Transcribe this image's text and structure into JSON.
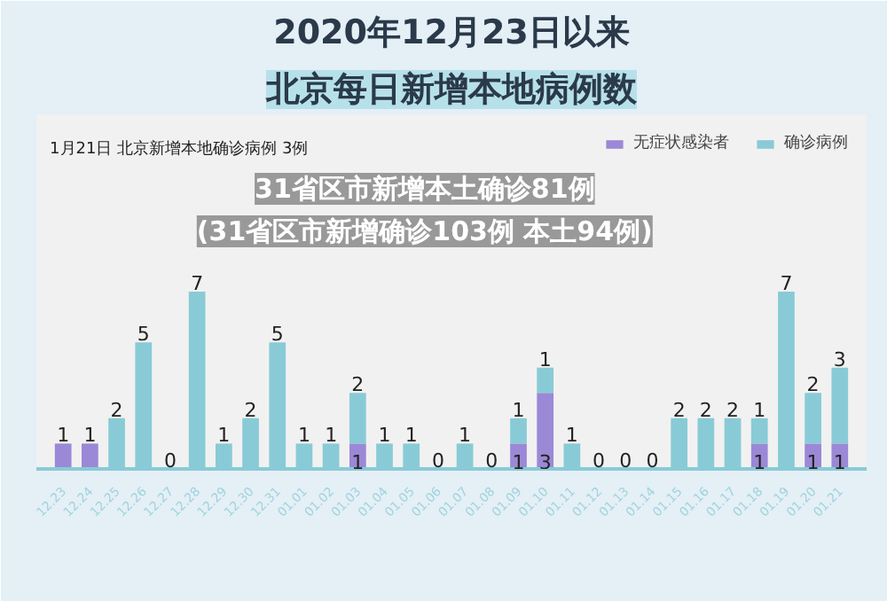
{
  "chart_data": {
    "type": "bar",
    "title": "2020年12月23日以来",
    "subtitle": "北京每日新增本地病例数",
    "annotations": [
      "1月21日 北京新增本地确诊病例 3例",
      "31省区市新增本土确诊81例(31省区市新增确诊103例 本土94例)"
    ],
    "categories": [
      "12.23",
      "12.24",
      "12.25",
      "12.26",
      "12.27",
      "12.28",
      "12.29",
      "12.30",
      "12.31",
      "01.01",
      "01.02",
      "01.03",
      "01.04",
      "01.05",
      "01.06",
      "01.07",
      "01.08",
      "01.09",
      "01.10",
      "01.11",
      "01.12",
      "01.13",
      "01.14",
      "01.15",
      "01.16",
      "01.17",
      "01.18",
      "01.19",
      "01.20",
      "01.21"
    ],
    "stacked": true,
    "legend": "top right",
    "grid": false,
    "series": [
      {
        "name": "无症状感染者",
        "color": "#9b88d6",
        "values": [
          1,
          1,
          0,
          0,
          0,
          0,
          0,
          0,
          0,
          0,
          0,
          1,
          0,
          0,
          0,
          0,
          0,
          1,
          3,
          0,
          0,
          0,
          0,
          0,
          0,
          0,
          1,
          0,
          1,
          1
        ],
        "value_labels": [
          "1",
          "1",
          null,
          null,
          null,
          null,
          null,
          null,
          null,
          null,
          null,
          "1",
          null,
          null,
          null,
          null,
          null,
          "1",
          "3",
          null,
          null,
          null,
          null,
          null,
          null,
          null,
          "1",
          null,
          "1",
          "1"
        ]
      },
      {
        "name": "确诊病例",
        "color": "#88cbd6",
        "values": [
          0,
          0,
          2,
          5,
          0,
          7,
          1,
          2,
          5,
          1,
          1,
          2,
          1,
          1,
          0,
          1,
          0,
          1,
          1,
          1,
          0,
          0,
          0,
          2,
          2,
          2,
          1,
          7,
          2,
          3
        ],
        "value_labels": [
          null,
          null,
          "2",
          "5",
          "0",
          "7",
          "1",
          "2",
          "5",
          "1",
          "1",
          "2",
          "1",
          "1",
          "0",
          "1",
          "0",
          "1",
          "1",
          "1",
          "0",
          "0",
          "0",
          "2",
          "2",
          "2",
          "1",
          "7",
          "2",
          "3"
        ]
      }
    ]
  }
}
